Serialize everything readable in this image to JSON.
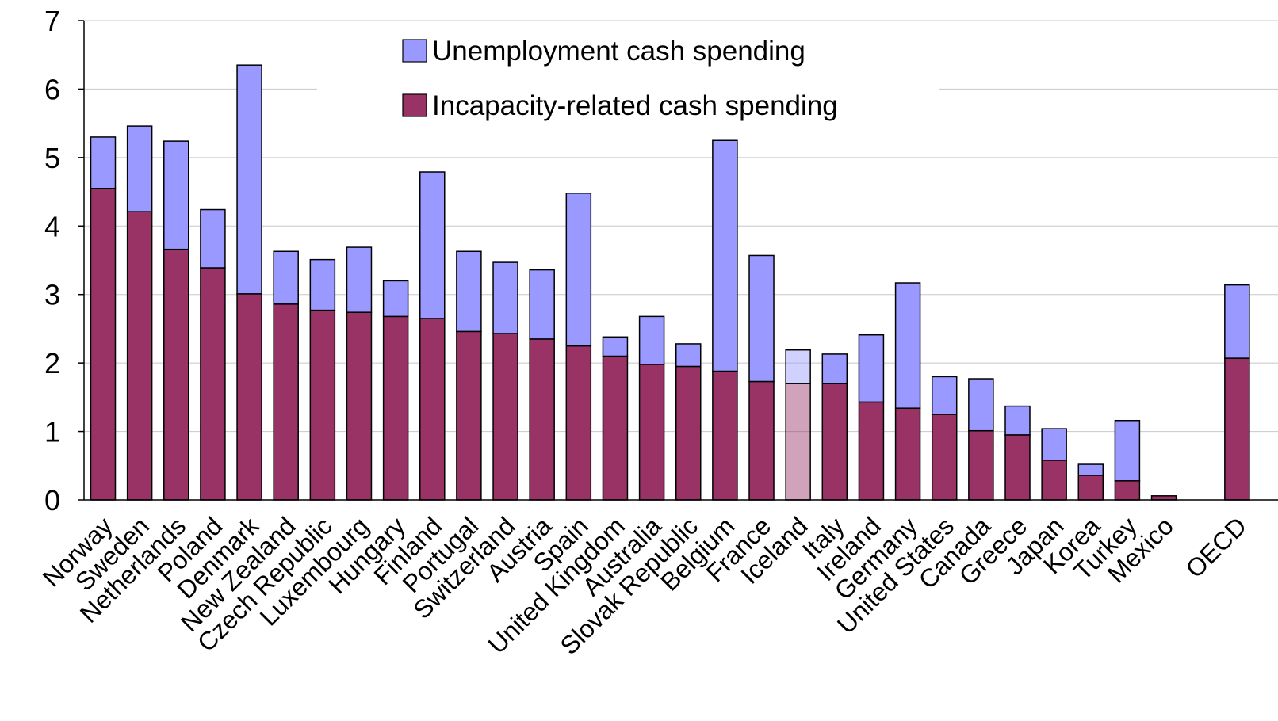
{
  "chart_data": {
    "type": "bar",
    "stacked": true,
    "ylim": [
      0,
      7
    ],
    "yticks": [
      0,
      1,
      2,
      3,
      4,
      5,
      6,
      7
    ],
    "grid": true,
    "legend_position": "top-center",
    "categories": [
      "Norway",
      "Sweden",
      "Netherlands",
      "Poland",
      "Denmark",
      "New Zealand",
      "Czech Republic",
      "Luxembourg",
      "Hungary",
      "Finland",
      "Portugal",
      "Switzerland",
      "Austria",
      "Spain",
      "United Kingdom",
      "Australia",
      "Slovak Republic",
      "Belgium",
      "France",
      "Iceland",
      "Italy",
      "Ireland",
      "Germany",
      "United States",
      "Canada",
      "Greece",
      "Japan",
      "Korea",
      "Turkey",
      "Mexico",
      "",
      "OECD"
    ],
    "highlighted_category": "Iceland",
    "series": [
      {
        "name": "Incapacity-related cash spending",
        "color": "#993366",
        "values": [
          4.55,
          4.21,
          3.66,
          3.39,
          3.01,
          2.86,
          2.77,
          2.74,
          2.68,
          2.65,
          2.46,
          2.43,
          2.35,
          2.25,
          2.1,
          1.98,
          1.95,
          1.88,
          1.73,
          1.7,
          1.7,
          1.43,
          1.34,
          1.25,
          1.01,
          0.95,
          0.58,
          0.36,
          0.28,
          0.06,
          null,
          2.07
        ]
      },
      {
        "name": "Unemployment cash spending",
        "color": "#9999FF",
        "values": [
          0.75,
          1.25,
          1.58,
          0.85,
          3.34,
          0.77,
          0.74,
          0.95,
          0.52,
          2.14,
          1.17,
          1.04,
          1.01,
          2.23,
          0.28,
          0.7,
          0.33,
          3.37,
          1.84,
          0.49,
          0.43,
          0.98,
          1.83,
          0.55,
          0.76,
          0.42,
          0.46,
          0.16,
          0.88,
          0.0,
          null,
          1.07
        ]
      }
    ]
  }
}
